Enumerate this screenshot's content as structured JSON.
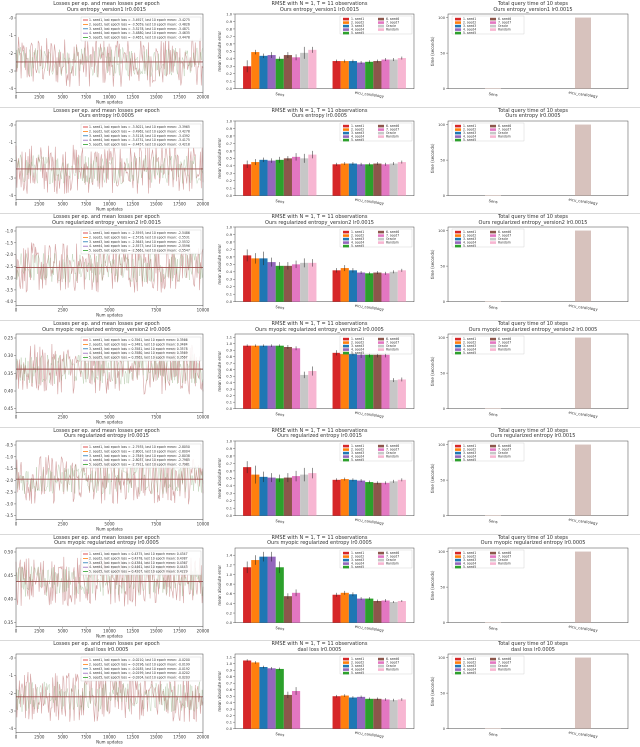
{
  "colors": {
    "loss_band": "#c98b8b",
    "loss_mean": "#9b4b4b",
    "query_bar": "#d7c2bd",
    "seed1": "#d62728",
    "seed2": "#ff7f0e",
    "seed3": "#1f77b4",
    "seed4": "#9467bd",
    "seed5": "#2ca02c",
    "seed6": "#8c564b",
    "seed7": "#e377c2",
    "oracle": "#c7c7c7",
    "random": "#f7b6d2"
  },
  "chart_data": [
    {
      "type": "line",
      "row": 0,
      "panel": "loss",
      "title": "Losses per ep. and mean losses per epoch",
      "subtitle": "Ours entropy_version1 lr0.0015",
      "xlabel": "Num updates",
      "xticks": [
        "0",
        "2500",
        "5000",
        "7500",
        "10000",
        "12500",
        "15000",
        "17500",
        "20000"
      ],
      "yticks": [
        "-0",
        "-1",
        "-2",
        "-3",
        "-4"
      ],
      "legend": [
        "1. seed1, last epoch loss = -3.4927, last 10 epoch mean: -3.4275",
        "2. seed2, last epoch loss = -3.5059, last 10 epoch mean: -3.4826",
        "3. seed3, last epoch loss = -3.5278, last 10 epoch mean: -3.4871",
        "4. seed4, last epoch loss = -3.4880, last 10 epoch mean: -3.4635",
        "5. seed5, last epoch loss = -3.4651, last 10 epoch mean: -3.4478"
      ],
      "ylim": [
        -4.3,
        0.3
      ],
      "y_mean": -2.5
    },
    {
      "type": "bar",
      "row": 0,
      "panel": "rmse",
      "title": "RMSE with N = 1, T = 11 observations",
      "subtitle": "Ours entropy_version1 lr0.0015",
      "ylabel": "mean absolute error",
      "categories": [
        "Sens",
        "eicu_cardiology"
      ],
      "series": [
        "1. seed1",
        "2. seed2",
        "3. seed3",
        "4. seed4",
        "5. seed5",
        "6. seed6",
        "7. seed7",
        "Oracle",
        "Random"
      ],
      "values": [
        [
          0.3,
          0.49,
          0.44,
          0.45,
          0.4,
          0.45,
          0.42,
          0.48,
          0.52
        ],
        [
          0.37,
          0.37,
          0.37,
          0.35,
          0.36,
          0.37,
          0.39,
          0.39,
          0.41
        ]
      ],
      "errors": [
        [
          0.08,
          0.03,
          0.03,
          0.04,
          0.03,
          0.04,
          0.04,
          0.08,
          0.04
        ],
        [
          0.02,
          0.02,
          0.02,
          0.02,
          0.02,
          0.02,
          0.02,
          0.02,
          0.02
        ]
      ],
      "ylim": [
        0,
        1.0
      ]
    },
    {
      "type": "bar",
      "row": 0,
      "panel": "query",
      "title": "Total query time of 10 steps",
      "subtitle": "Ours entropy_version1 lr0.0015",
      "ylabel": "time (seconds)",
      "categories": [
        "Sens",
        "eicu_cardiology"
      ],
      "values": [
        0.5,
        100.0
      ],
      "ylim": [
        0,
        105
      ]
    },
    {
      "type": "line",
      "row": 1,
      "panel": "loss",
      "title": "Losses per ep. and mean losses per epoch",
      "subtitle": "Ours entropy lr0.0005",
      "xlabel": "Num updates",
      "xticks": [
        "0",
        "2500",
        "5000",
        "7500",
        "10000",
        "12500",
        "15000",
        "17500",
        "20000"
      ],
      "yticks": [
        "-0",
        "-1",
        "-2",
        "-3",
        "-4"
      ],
      "legend": [
        "1. seed1, last epoch loss = -3.5021, last 10 epoch mean: -3.3965",
        "2. seed2, last epoch loss = -3.4962, last 10 epoch mean: -3.4278",
        "3. seed3, last epoch loss = -3.5118, last 10 epoch mean: -3.4392",
        "4. seed4, last epoch loss = -3.4731, last 10 epoch mean: -3.4175",
        "5. seed5, last epoch loss = -3.4457, last 10 epoch mean: -3.4218"
      ],
      "ylim": [
        -4.3,
        0.3
      ],
      "y_mean": -2.5
    },
    {
      "type": "bar",
      "row": 1,
      "panel": "rmse",
      "title": "RMSE with N = 1, T = 11 observations",
      "subtitle": "Ours entropy lr0.0005",
      "ylabel": "mean absolute error",
      "categories": [
        "Sens",
        "eicu_cardiology"
      ],
      "series": [
        "1. seed1",
        "2. seed2",
        "3. seed3",
        "4. seed4",
        "5. seed5",
        "6. seed6",
        "7. seed7",
        "Oracle",
        "Random"
      ],
      "values": [
        [
          0.42,
          0.45,
          0.48,
          0.47,
          0.48,
          0.5,
          0.52,
          0.5,
          0.55
        ],
        [
          0.42,
          0.43,
          0.43,
          0.42,
          0.42,
          0.43,
          0.42,
          0.43,
          0.45
        ]
      ],
      "errors": [
        [
          0.05,
          0.04,
          0.03,
          0.03,
          0.04,
          0.03,
          0.05,
          0.06,
          0.05
        ],
        [
          0.02,
          0.02,
          0.02,
          0.02,
          0.02,
          0.02,
          0.02,
          0.02,
          0.02
        ]
      ],
      "ylim": [
        0,
        1.0
      ]
    },
    {
      "type": "bar",
      "row": 1,
      "panel": "query",
      "title": "Total query time of 10 steps",
      "subtitle": "Ours entropy lr0.0005",
      "ylabel": "time (seconds)",
      "categories": [
        "Sens",
        "eicu_cardiology"
      ],
      "values": [
        0.5,
        100.0
      ],
      "ylim": [
        0,
        105
      ]
    },
    {
      "type": "line",
      "row": 2,
      "panel": "loss",
      "title": "Losses per ep. and mean losses per epoch",
      "subtitle": "Ours regularized entropy_version2 lr0.0015",
      "xlabel": "Num updates",
      "xticks": [
        "0",
        "2500",
        "5000",
        "7500",
        "10000"
      ],
      "yticks": [
        "-1.0",
        "-1.5",
        "-2.0",
        "-2.5",
        "-3.0",
        "-3.5",
        "-4.0"
      ],
      "legend": [
        "1. seed1, last epoch loss = -2.5593, last 10 epoch mean: -2.5486",
        "2. seed2, last epoch loss = -2.5726, last 10 epoch mean: -2.5531",
        "3. seed3, last epoch loss = -2.5645, last 10 epoch mean: -2.5532",
        "4. seed4, last epoch loss = -2.5573, last 10 epoch mean: -2.5596",
        "5. seed5, last epoch loss = -2.5661, last 10 epoch mean: -2.5547"
      ],
      "ylim": [
        -4.3,
        -0.7
      ],
      "y_mean": -2.55
    },
    {
      "type": "bar",
      "row": 2,
      "panel": "rmse",
      "title": "RMSE with N = 1, T = 11 observations",
      "subtitle": "Ours regularized entropy_version2 lr0.0015",
      "ylabel": "mean absolute error",
      "categories": [
        "Sens",
        "eicu_cardiology"
      ],
      "series": [
        "1. seed1",
        "2. seed2",
        "3. seed3",
        "4. seed4",
        "5. seed5",
        "6. seed6",
        "7. seed7",
        "Oracle",
        "Random"
      ],
      "values": [
        [
          0.62,
          0.58,
          0.58,
          0.53,
          0.48,
          0.48,
          0.5,
          0.52,
          0.52
        ],
        [
          0.42,
          0.45,
          0.42,
          0.39,
          0.38,
          0.39,
          0.38,
          0.4,
          0.42
        ]
      ],
      "errors": [
        [
          0.08,
          0.07,
          0.09,
          0.06,
          0.05,
          0.05,
          0.05,
          0.06,
          0.05
        ],
        [
          0.03,
          0.04,
          0.03,
          0.02,
          0.02,
          0.02,
          0.02,
          0.02,
          0.02
        ]
      ],
      "ylim": [
        0,
        1.0
      ]
    },
    {
      "type": "bar",
      "row": 2,
      "panel": "query",
      "title": "Total query time of 10 steps",
      "subtitle": "Ours regularized entropy_version2 lr0.0015",
      "ylabel": "time (seconds)",
      "categories": [
        "Sens",
        "eicu_cardiology"
      ],
      "values": [
        0.5,
        100.0
      ],
      "ylim": [
        0,
        105
      ]
    },
    {
      "type": "line",
      "row": 3,
      "panel": "loss",
      "title": "Losses per ep. and mean losses per epoch",
      "subtitle": "Ours myopic regularized entropy_version2 lr0.0005",
      "xlabel": "Num updates",
      "xticks": [
        "0",
        "2500",
        "5000",
        "7500",
        "10000"
      ],
      "yticks": [
        "0.25",
        "0.30",
        "0.35",
        "0.40",
        "0.45"
      ],
      "legend": [
        "1. seed1, last epoch loss = 0.3561, last 10 epoch mean: 0.3566",
        "2. seed2, last epoch loss = 0.3481, last 10 epoch mean: 0.3484",
        "3. seed3, last epoch loss = 0.3581, last 10 epoch mean: 0.3578",
        "4. seed4, last epoch loss = 0.3580, last 10 epoch mean: 0.3569",
        "5. seed5, last epoch loss = 0.3562, last 10 epoch mean: 0.3567"
      ],
      "ylim": [
        0.2,
        0.48
      ],
      "y_mean": 0.355
    },
    {
      "type": "bar",
      "row": 3,
      "panel": "rmse",
      "title": "RMSE with N = 1, T = 11 observations",
      "subtitle": "Ours myopic regularized entropy_version2 lr0.0005",
      "ylabel": "mean absolute error",
      "categories": [
        "Sens",
        "eicu_cardiology"
      ],
      "series": [
        "1. seed1",
        "2. seed2",
        "3. seed3",
        "4. seed4",
        "5. seed5",
        "6. seed6",
        "7. seed7",
        "Oracle",
        "Random"
      ],
      "values": [
        [
          0.97,
          0.97,
          0.97,
          0.97,
          0.97,
          0.95,
          0.93,
          0.52,
          0.58
        ],
        [
          0.86,
          0.97,
          0.86,
          0.83,
          0.83,
          0.83,
          0.83,
          0.44,
          0.45
        ]
      ],
      "errors": [
        [
          0.02,
          0.02,
          0.02,
          0.02,
          0.02,
          0.03,
          0.03,
          0.05,
          0.07
        ],
        [
          0.04,
          0.1,
          0.04,
          0.05,
          0.04,
          0.04,
          0.04,
          0.03,
          0.03
        ]
      ],
      "ylim": [
        0,
        1.15
      ]
    },
    {
      "type": "bar",
      "row": 3,
      "panel": "query",
      "title": "Total query time of 10 steps",
      "subtitle": "Ours myopic regularized entropy_version2 lr0.0005",
      "ylabel": "time (seconds)",
      "categories": [
        "Sens",
        "eicu_cardiology"
      ],
      "values": [
        0.5,
        100.0
      ],
      "ylim": [
        0,
        105
      ]
    },
    {
      "type": "line",
      "row": 4,
      "panel": "loss",
      "title": "Losses per ep. and mean losses per epoch",
      "subtitle": "Ours regularized entropy lr0.0015",
      "xlabel": "Num updates",
      "xticks": [
        "0",
        "2500",
        "5000",
        "7500",
        "10000"
      ],
      "yticks": [
        "-0.5",
        "-1.0",
        "-1.5",
        "-2.0",
        "-2.5",
        "-3.0",
        "-3.5"
      ],
      "legend": [
        "1. seed1, last epoch loss = -2.7935, last 10 epoch mean: -2.8050",
        "2. seed2, last epoch loss = -2.8001, last 10 epoch mean: -2.8004",
        "3. seed3, last epoch loss = -2.7849, last 10 epoch mean: -2.8038",
        "4. seed4, last epoch loss = -2.8037, last 10 epoch mean: -2.7985",
        "5. seed5, last epoch loss = -2.7911, last 10 epoch mean: -2.7981"
      ],
      "ylim": [
        -3.8,
        -0.3
      ],
      "y_mean": -2.0
    },
    {
      "type": "bar",
      "row": 4,
      "panel": "rmse",
      "title": "RMSE with N = 1, T = 11 observations",
      "subtitle": "Ours regularized entropy lr0.0015",
      "ylabel": "mean absolute error",
      "categories": [
        "Sens",
        "eicu_cardiology"
      ],
      "series": [
        "1. seed1",
        "2. seed2",
        "3. seed3",
        "4. seed4",
        "5. seed5",
        "6. seed6",
        "7. seed7",
        "Oracle",
        "Random"
      ],
      "values": [
        [
          0.65,
          0.55,
          0.52,
          0.51,
          0.5,
          0.51,
          0.53,
          0.55,
          0.57
        ],
        [
          0.48,
          0.49,
          0.48,
          0.47,
          0.45,
          0.44,
          0.44,
          0.46,
          0.48
        ]
      ],
      "errors": [
        [
          0.08,
          0.12,
          0.07,
          0.06,
          0.05,
          0.06,
          0.07,
          0.09,
          0.07
        ],
        [
          0.02,
          0.02,
          0.02,
          0.02,
          0.02,
          0.02,
          0.02,
          0.02,
          0.02
        ]
      ],
      "ylim": [
        0,
        1.0
      ]
    },
    {
      "type": "bar",
      "row": 4,
      "panel": "query",
      "title": "Total query time of 10 steps",
      "subtitle": "Ours regularized entropy lr0.0015",
      "ylabel": "time (seconds)",
      "categories": [
        "Sens",
        "eicu_cardiology"
      ],
      "values": [
        0.5,
        100.0
      ],
      "ylim": [
        0,
        105
      ]
    },
    {
      "type": "line",
      "row": 5,
      "panel": "loss",
      "title": "Losses per ep. and mean losses per epoch",
      "subtitle": "Ours myopic regularized entropy lr0.0005",
      "xlabel": "Num updates",
      "xticks": [
        "0",
        "2500",
        "5000",
        "7500",
        "10000",
        "12500",
        "15000",
        "17500",
        "20000"
      ],
      "yticks": [
        "0.50",
        "0.45",
        "0.40",
        "0.35"
      ],
      "legend": [
        "1. seed1, last epoch loss = 0.4375, last 10 epoch mean: 0.4347",
        "2. seed2, last epoch loss = 0.4378, last 10 epoch mean: 0.4387",
        "3. seed3, last epoch loss = 0.4384, last 10 epoch mean: 0.4367",
        "4. seed4, last epoch loss = 0.4461, last 10 epoch mean: 0.4443",
        "5. seed5, last epoch loss = 0.4207, last 10 epoch mean: 0.4229"
      ],
      "ylim": [
        0.32,
        0.52
      ],
      "y_mean": 0.435
    },
    {
      "type": "bar",
      "row": 5,
      "panel": "rmse",
      "title": "RMSE with N = 1, T = 11 observations",
      "subtitle": "Ours myopic regularized entropy lr0.0005",
      "ylabel": "mean absolute error",
      "categories": [
        "Sens",
        "eicu_cardiology"
      ],
      "series": [
        "1. seed1",
        "2. seed2",
        "3. seed3",
        "4. seed4",
        "5. seed5",
        "6. seed6",
        "7. seed7",
        "Oracle",
        "Random"
      ],
      "values": [
        [
          1.15,
          1.3,
          1.37,
          1.37,
          1.15,
          0.55,
          0.62,
          0.0,
          0.0
        ],
        [
          0.58,
          0.62,
          0.59,
          0.5,
          0.5,
          0.45,
          0.46,
          0.43,
          0.45
        ]
      ],
      "errors": [
        [
          0.12,
          0.1,
          0.1,
          0.1,
          0.12,
          0.06,
          0.07,
          0.0,
          0.0
        ],
        [
          0.04,
          0.04,
          0.04,
          0.03,
          0.03,
          0.03,
          0.03,
          0.02,
          0.02
        ]
      ],
      "ylim": [
        0,
        1.55
      ]
    },
    {
      "type": "bar",
      "row": 5,
      "panel": "query",
      "title": "Total query time of 10 steps",
      "subtitle": "Ours myopic regularized entropy lr0.0005",
      "ylabel": "time (seconds)",
      "categories": [
        "Sens",
        "eicu_cardiology"
      ],
      "values": [
        0.5,
        100.0
      ],
      "ylim": [
        0,
        105
      ]
    },
    {
      "type": "line",
      "row": 6,
      "panel": "loss",
      "title": "Losses per ep. and mean losses per epoch",
      "subtitle": "dasl loss lr0.0005",
      "xlabel": "Num updates",
      "xticks": [
        "0",
        "2500",
        "5000",
        "7500",
        "10000",
        "12500",
        "15000",
        "17500",
        "20000"
      ],
      "yticks": [
        "-0",
        "-1",
        "-2",
        "-3",
        "-4"
      ],
      "legend": [
        "1. seed1, last epoch loss = -0.0210, last 10 epoch mean: -0.0200",
        "2. seed2, last epoch loss = -0.0196, last 10 epoch mean: -0.0199",
        "3. seed3, last epoch loss = -0.0185, last 10 epoch mean: -0.0192",
        "4. seed4, last epoch loss = -0.0199, last 10 epoch mean: -0.0202",
        "5. seed5, last epoch loss = -0.0204, last 10 epoch mean: -0.0203"
      ],
      "ylim": [
        -4.3,
        0.3
      ],
      "y_mean": -2.2
    },
    {
      "type": "bar",
      "row": 6,
      "panel": "rmse",
      "title": "RMSE with N = 1, T = 11 observations",
      "subtitle": "dasl loss lr0.0005",
      "ylabel": "mean absolute error",
      "categories": [
        "Sens",
        "eicu_cardiology"
      ],
      "series": [
        "1. seed1",
        "2. seed2",
        "3. seed3",
        "4. seed4",
        "5. seed5",
        "6. seed6",
        "7. seed7",
        "Oracle",
        "Random"
      ],
      "values": [
        [
          1.05,
          1.02,
          0.95,
          0.93,
          0.92,
          0.52,
          0.58,
          0.0,
          0.0
        ],
        [
          0.5,
          0.51,
          0.48,
          0.49,
          0.46,
          0.46,
          0.45,
          0.44,
          0.45
        ]
      ],
      "errors": [
        [
          0.02,
          0.02,
          0.02,
          0.02,
          0.02,
          0.05,
          0.06,
          0.0,
          0.0
        ],
        [
          0.02,
          0.02,
          0.02,
          0.02,
          0.02,
          0.02,
          0.02,
          0.02,
          0.02
        ]
      ],
      "ylim": [
        0,
        1.15
      ]
    },
    {
      "type": "bar",
      "row": 6,
      "panel": "query",
      "title": "Total query time of 10 steps",
      "subtitle": "dasl loss lr0.0005",
      "ylabel": "time (seconds)",
      "categories": [
        "Sens",
        "eicu_cardiology"
      ],
      "values": [
        0.5,
        100.0
      ],
      "ylim": [
        0,
        105
      ]
    }
  ]
}
